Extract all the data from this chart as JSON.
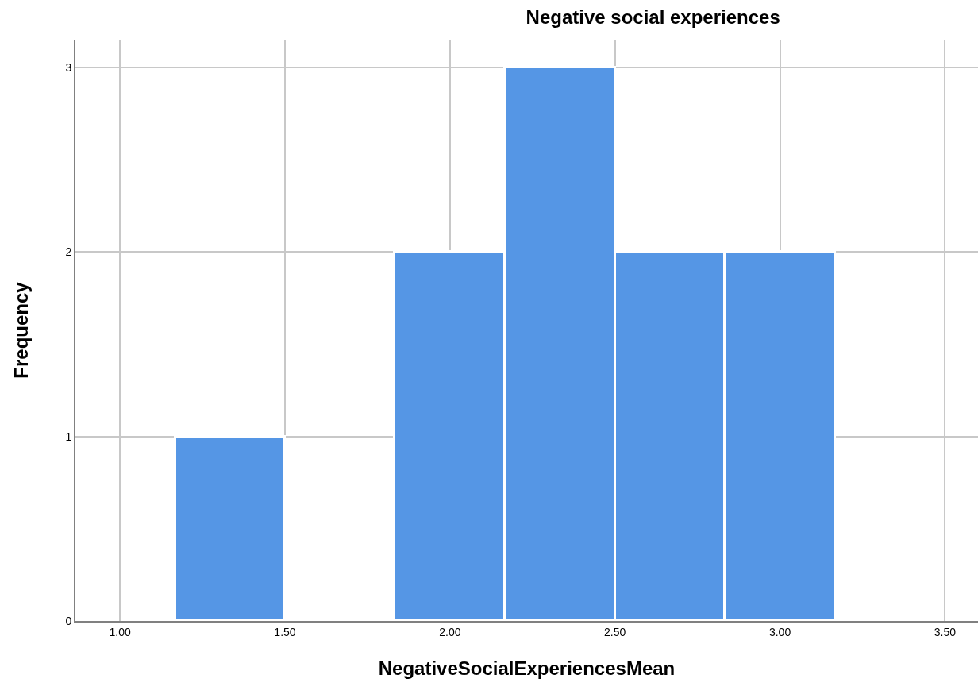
{
  "chart_data": {
    "type": "histogram",
    "title": "Negative social experiences",
    "xlabel": "NegativeSocialExperiencesMean",
    "ylabel": "Frequency",
    "bins": [
      1.167,
      1.5,
      1.833,
      2.167,
      2.5,
      2.833,
      3.167
    ],
    "values": [
      1,
      0,
      2,
      3,
      2,
      2
    ],
    "color": "#5596e5",
    "xlim": [
      0.865,
      3.6
    ],
    "xticks": [
      {
        "value": 1,
        "label": "1.00"
      },
      {
        "value": 1.5,
        "label": "1.50"
      },
      {
        "value": 2,
        "label": "2.00"
      },
      {
        "value": 2.5,
        "label": "2.50"
      },
      {
        "value": 3,
        "label": "3.00"
      },
      {
        "value": 3.5,
        "label": "3.50"
      }
    ],
    "ylim": [
      0,
      3.15
    ],
    "yticks": [
      0,
      1,
      2,
      3
    ],
    "grid": true
  }
}
